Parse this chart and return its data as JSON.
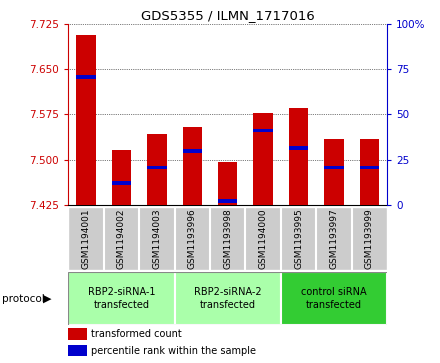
{
  "title": "GDS5355 / ILMN_1717016",
  "samples": [
    "GSM1194001",
    "GSM1194002",
    "GSM1194003",
    "GSM1193996",
    "GSM1193998",
    "GSM1194000",
    "GSM1193995",
    "GSM1193997",
    "GSM1193999"
  ],
  "red_values": [
    7.706,
    7.516,
    7.543,
    7.554,
    7.497,
    7.578,
    7.585,
    7.535,
    7.535
  ],
  "blue_values": [
    7.637,
    7.462,
    7.487,
    7.514,
    7.432,
    7.548,
    7.519,
    7.487,
    7.487
  ],
  "ylim_left": [
    7.425,
    7.725
  ],
  "yticks_left": [
    7.425,
    7.5,
    7.575,
    7.65,
    7.725
  ],
  "yticks_right": [
    0,
    25,
    50,
    75,
    100
  ],
  "ylim_right": [
    0,
    100
  ],
  "groups": [
    {
      "label": "RBP2-siRNA-1\ntransfected",
      "indices": [
        0,
        1,
        2
      ],
      "color": "#aaffaa"
    },
    {
      "label": "RBP2-siRNA-2\ntransfected",
      "indices": [
        3,
        4,
        5
      ],
      "color": "#aaffaa"
    },
    {
      "label": "control siRNA\ntransfected",
      "indices": [
        6,
        7,
        8
      ],
      "color": "#33cc33"
    }
  ],
  "bar_bottom": 7.425,
  "bar_width": 0.55,
  "blue_bar_height": 0.006,
  "red_color": "#cc0000",
  "blue_color": "#0000cc",
  "left_axis_color": "#cc0000",
  "right_axis_color": "#0000cc",
  "bg_color": "#ffffff",
  "sample_bg_color": "#cccccc",
  "legend_red": "transformed count",
  "legend_blue": "percentile rank within the sample",
  "protocol_label": "protocol"
}
